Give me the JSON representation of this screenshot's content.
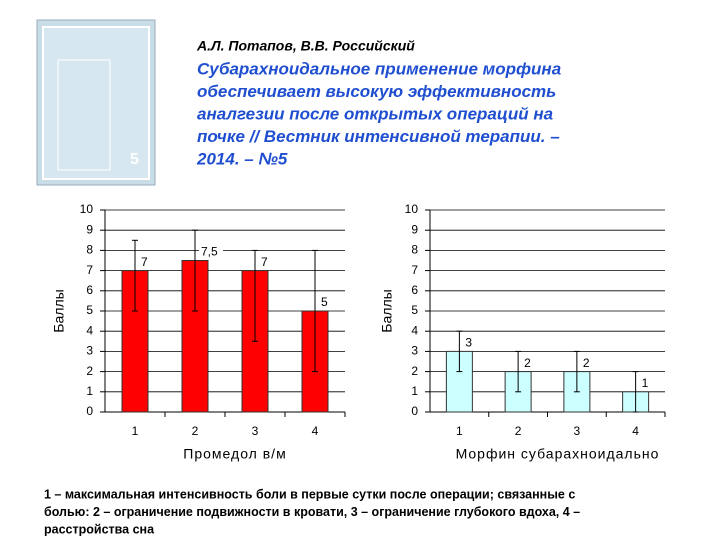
{
  "header": {
    "authors": "А.Л. Потапов, В.В. Российский",
    "title_lines": [
      "Субарахноидальное применение морфина",
      "обеспечивает высокую эффективность",
      "аналгезии после открытых операций на",
      "почке // Вестник интенсивной терапии. –",
      "2014. – №5"
    ]
  },
  "chart_data": [
    {
      "type": "bar",
      "x_label": "Промедол в/м",
      "y_label": "Баллы",
      "categories": [
        "1",
        "2",
        "3",
        "4"
      ],
      "values": [
        7,
        7.5,
        7,
        5
      ],
      "value_labels": [
        "7",
        "7,5",
        "7",
        "5"
      ],
      "error_lower": [
        5,
        5,
        3.5,
        2
      ],
      "error_upper": [
        8.5,
        9,
        8,
        8
      ],
      "color": "#ff0000",
      "ylim": [
        0,
        10
      ],
      "yticks": [
        0,
        1,
        2,
        3,
        4,
        5,
        6,
        7,
        8,
        9,
        10
      ],
      "grid": true
    },
    {
      "type": "bar",
      "x_label": "Морфин субарахноидально",
      "y_label": "Баллы",
      "categories": [
        "1",
        "2",
        "3",
        "4"
      ],
      "values": [
        3,
        2,
        2,
        1
      ],
      "error_lower": [
        2,
        1,
        1,
        0
      ],
      "error_upper": [
        4,
        3,
        3,
        2
      ],
      "color": "#ccffff",
      "ylim": [
        0,
        10
      ],
      "yticks": [
        0,
        1,
        2,
        3,
        4,
        5,
        6,
        7,
        8,
        9,
        10
      ],
      "grid": true
    }
  ],
  "footer": {
    "lines": [
      "1 – максимальная интенсивность боли в первые сутки после операции; связанные с",
      "болью: 2 – ограничение подвижности в кровати, 3 – ограничение глубокого вдоха, 4 –",
      "расстройства сна"
    ]
  }
}
